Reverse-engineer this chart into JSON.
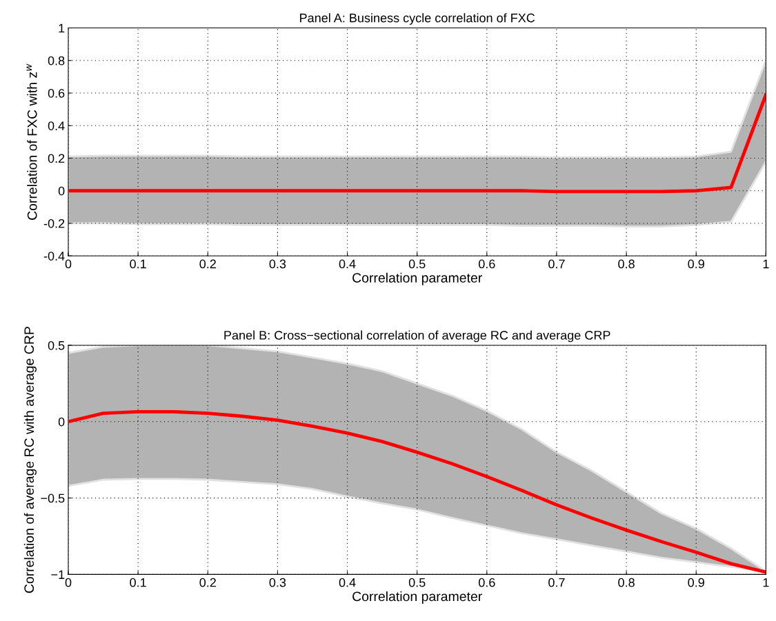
{
  "chart_data": [
    {
      "type": "line",
      "title": "Panel A: Business cycle correlation of FXC",
      "xlabel": "Correlation parameter",
      "ylabel": "Correlation of FXC with z$^{w}$",
      "x": [
        0,
        0.05,
        0.1,
        0.15,
        0.2,
        0.25,
        0.3,
        0.35,
        0.4,
        0.45,
        0.5,
        0.55,
        0.6,
        0.65,
        0.7,
        0.75,
        0.8,
        0.85,
        0.9,
        0.95,
        1
      ],
      "series": [
        {
          "color": "#ff0000",
          "values": [
            0,
            0,
            0,
            0,
            0,
            0,
            0,
            0,
            0,
            0,
            0,
            0,
            0,
            0,
            -0.005,
            -0.005,
            -0.005,
            -0.005,
            0,
            0.02,
            0.59
          ],
          "upper": [
            0.21,
            0.215,
            0.215,
            0.215,
            0.215,
            0.21,
            0.21,
            0.21,
            0.21,
            0.21,
            0.21,
            0.21,
            0.21,
            0.21,
            0.205,
            0.205,
            0.205,
            0.205,
            0.21,
            0.24,
            0.8
          ],
          "lower": [
            -0.2,
            -0.2,
            -0.205,
            -0.205,
            -0.205,
            -0.21,
            -0.21,
            -0.21,
            -0.21,
            -0.21,
            -0.21,
            -0.21,
            -0.21,
            -0.215,
            -0.215,
            -0.215,
            -0.22,
            -0.22,
            -0.21,
            -0.19,
            0.18
          ]
        }
      ],
      "xlim": [
        0,
        1
      ],
      "xticks": [
        0,
        0.1,
        0.2,
        0.3,
        0.4,
        0.5,
        0.6,
        0.7,
        0.8,
        0.9,
        1
      ],
      "ylim": [
        -0.4,
        1
      ],
      "yticks": [
        -0.4,
        -0.2,
        0,
        0.2,
        0.4,
        0.6,
        0.8,
        1
      ],
      "grid": true,
      "legend": false,
      "marker": "none",
      "line_style": "solid"
    },
    {
      "type": "line",
      "title": "Panel B: Cross−sectional correlation of average RC and average CRP",
      "xlabel": "Correlation parameter",
      "ylabel": "Correlation of average RC with average CRP",
      "x": [
        0,
        0.05,
        0.1,
        0.15,
        0.2,
        0.25,
        0.3,
        0.35,
        0.4,
        0.45,
        0.5,
        0.55,
        0.6,
        0.65,
        0.7,
        0.75,
        0.8,
        0.85,
        0.9,
        0.95,
        1
      ],
      "series": [
        {
          "color": "#ff0000",
          "values": [
            0,
            0.055,
            0.065,
            0.065,
            0.055,
            0.035,
            0.01,
            -0.03,
            -0.075,
            -0.13,
            -0.2,
            -0.275,
            -0.36,
            -0.45,
            -0.545,
            -0.63,
            -0.71,
            -0.785,
            -0.855,
            -0.93,
            -0.985
          ],
          "upper": [
            0.45,
            0.49,
            0.5,
            0.5,
            0.5,
            0.48,
            0.46,
            0.42,
            0.38,
            0.33,
            0.25,
            0.17,
            0.07,
            -0.05,
            -0.2,
            -0.32,
            -0.46,
            -0.6,
            -0.7,
            -0.83,
            -0.98
          ],
          "lower": [
            -0.42,
            -0.38,
            -0.375,
            -0.375,
            -0.38,
            -0.395,
            -0.41,
            -0.44,
            -0.49,
            -0.535,
            -0.575,
            -0.63,
            -0.68,
            -0.73,
            -0.77,
            -0.81,
            -0.85,
            -0.89,
            -0.92,
            -0.95,
            -0.98
          ]
        }
      ],
      "xlim": [
        0,
        1
      ],
      "xticks": [
        0,
        0.1,
        0.2,
        0.3,
        0.4,
        0.5,
        0.6,
        0.7,
        0.8,
        0.9,
        1
      ],
      "ylim": [
        -1,
        0.5
      ],
      "yticks": [
        {
          "value": -1,
          "label": "−1"
        },
        {
          "value": -0.5,
          "label": "−0.5"
        },
        0,
        0.5
      ],
      "grid": true,
      "legend": false,
      "marker": "none",
      "line_style": "solid"
    }
  ]
}
